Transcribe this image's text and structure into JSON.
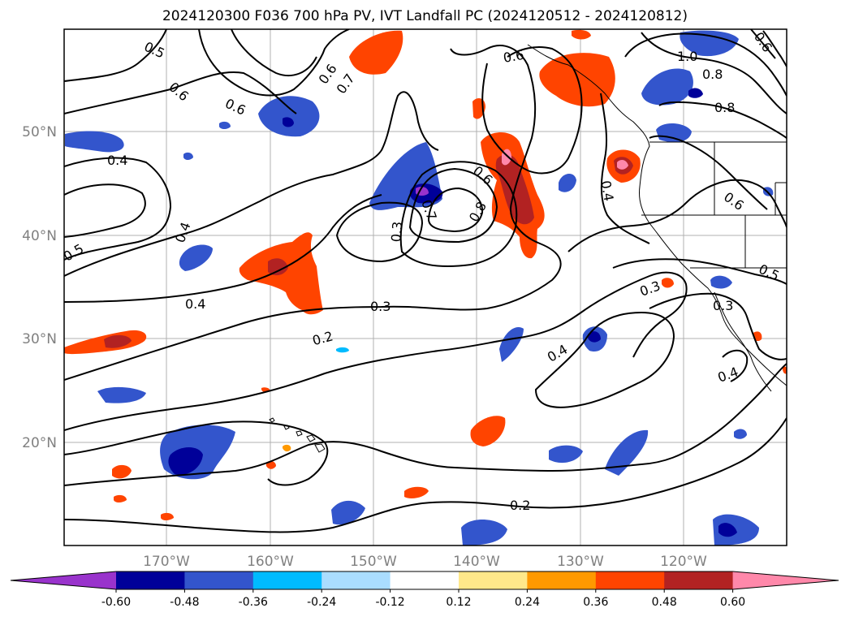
{
  "title": "2024120300 F036 700 hPa PV, IVT Landfall PC (2024120512 - 2024120812)",
  "lon_labels": [
    "170°W",
    "160°W",
    "150°W",
    "140°W",
    "130°W",
    "120°W"
  ],
  "lat_labels": [
    "50°N",
    "40°N",
    "30°N",
    "20°N"
  ],
  "colorbar": {
    "colors": [
      "#9933cc",
      "#000099",
      "#3355cc",
      "#00bbff",
      "#aaddff",
      "#ffffff",
      "#ffe88a",
      "#ff9900",
      "#ff4400",
      "#b22222",
      "#ff88aa"
    ],
    "ticks": [
      "-0.60",
      "-0.48",
      "-0.36",
      "-0.24",
      "-0.12",
      "0.12",
      "0.24",
      "0.36",
      "0.48",
      "0.60"
    ]
  },
  "contour_labels": [
    {
      "text": "0.5"
    },
    {
      "text": "0.6"
    },
    {
      "text": "0.6"
    },
    {
      "text": "0.6"
    },
    {
      "text": "0.7"
    },
    {
      "text": "0.6"
    },
    {
      "text": "1.0"
    },
    {
      "text": "0.8"
    },
    {
      "text": "0.8"
    },
    {
      "text": "0.6"
    },
    {
      "text": "0.4"
    },
    {
      "text": "0.4"
    },
    {
      "text": "0.5"
    },
    {
      "text": "0.3"
    },
    {
      "text": "0.7"
    },
    {
      "text": "0.8"
    },
    {
      "text": "0.6"
    },
    {
      "text": "0.4"
    },
    {
      "text": "0.6"
    },
    {
      "text": "0.5"
    },
    {
      "text": "0.4"
    },
    {
      "text": "0.3"
    },
    {
      "text": "0.3"
    },
    {
      "text": "0.2"
    },
    {
      "text": "0.3"
    },
    {
      "text": "0.4"
    },
    {
      "text": "0.4"
    },
    {
      "text": "0.2"
    }
  ]
}
